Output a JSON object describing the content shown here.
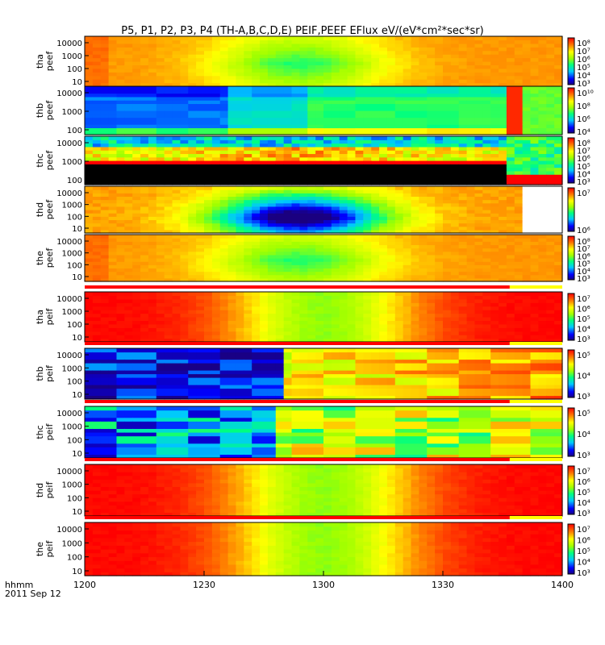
{
  "title": "P5, P1, P2, P3, P4 (TH-A,B,C,D,E) PEIF,PEEF EFlux eV/(eV*cm²*sec*sr)",
  "footer": {
    "axis_unit": "hhmm",
    "date": "2011 Sep 12"
  },
  "colors": {
    "background": "#ffffff",
    "frame": "#000000",
    "fill_value": "#000000"
  },
  "chart_data": {
    "type": "heatmap",
    "x": {
      "ticks": [
        "1200",
        "1230",
        "1300",
        "1330",
        "1400"
      ],
      "range_hhmm": [
        "1200",
        "1400"
      ]
    },
    "panels": [
      {
        "label": [
          "tha",
          "peef"
        ],
        "yticks": [
          "10000",
          "1000",
          "100",
          "10"
        ],
        "cbar_ticks": [
          "10⁸",
          "10⁷",
          "10⁶",
          "10⁵",
          "10⁴",
          "10³"
        ],
        "pattern": "electron_smooth",
        "topbar": false
      },
      {
        "label": [
          "thb",
          "peef"
        ],
        "yticks": [
          "10000",
          "1000",
          "100"
        ],
        "cbar_ticks": [
          "10¹⁰",
          "10⁸",
          "10⁶",
          "10⁴"
        ],
        "pattern": "electron_blocky",
        "topbar": false
      },
      {
        "label": [
          "thc",
          "peef"
        ],
        "yticks": [
          "10000",
          "1000",
          "100"
        ],
        "cbar_ticks": [
          "10⁸",
          "10⁷",
          "10⁶",
          "10⁵",
          "10⁴",
          "10³"
        ],
        "pattern": "electron_black",
        "topbar": false
      },
      {
        "label": [
          "thd",
          "peef"
        ],
        "yticks": [
          "10000",
          "1000",
          "100",
          "10"
        ],
        "cbar_ticks": [
          "10⁷",
          "10⁶"
        ],
        "pattern": "electron_deep",
        "topbar": false
      },
      {
        "label": [
          "the",
          "peef"
        ],
        "yticks": [
          "10000",
          "1000",
          "100",
          "10"
        ],
        "cbar_ticks": [
          "10⁸",
          "10⁷",
          "10⁶",
          "10⁵",
          "10⁴",
          "10³"
        ],
        "pattern": "electron_smooth",
        "topbar": false
      },
      {
        "label": [
          "tha",
          "peif"
        ],
        "yticks": [
          "10000",
          "1000",
          "100",
          "10"
        ],
        "cbar_ticks": [
          "10⁷",
          "10⁶",
          "10⁵",
          "10⁴",
          "10³"
        ],
        "pattern": "ion",
        "topbar": true
      },
      {
        "label": [
          "thb",
          "peif"
        ],
        "yticks": [
          "10000",
          "1000",
          "100",
          "10"
        ],
        "cbar_ticks": [
          "10⁵",
          "10⁴",
          "10³"
        ],
        "pattern": "ion_blocky",
        "topbar": true
      },
      {
        "label": [
          "thc",
          "peif"
        ],
        "yticks": [
          "10000",
          "1000",
          "100",
          "10"
        ],
        "cbar_ticks": [
          "10⁵",
          "10⁴",
          "10³"
        ],
        "pattern": "ion_blocky2",
        "topbar": true
      },
      {
        "label": [
          "thd",
          "peif"
        ],
        "yticks": [
          "10000",
          "1000",
          "100",
          "10"
        ],
        "cbar_ticks": [
          "10⁷",
          "10⁶",
          "10⁵",
          "10⁴",
          "10³"
        ],
        "pattern": "ion",
        "topbar": true
      },
      {
        "label": [
          "the",
          "peif"
        ],
        "yticks": [
          "10000",
          "1000",
          "100",
          "10"
        ],
        "cbar_ticks": [
          "10⁷",
          "10⁶",
          "10⁵",
          "10⁴",
          "10³"
        ],
        "pattern": "ion",
        "topbar": true
      }
    ]
  }
}
